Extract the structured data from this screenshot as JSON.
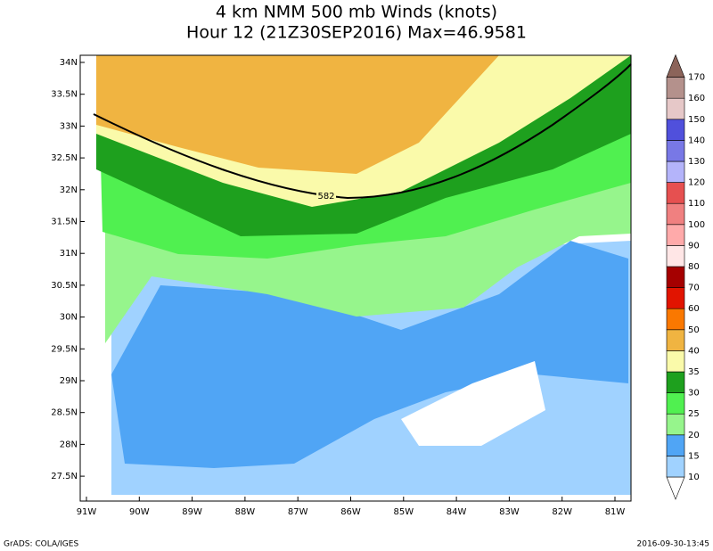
{
  "title": {
    "line1": "4 km NMM 500 mb Winds (knots)",
    "line2": "Hour 12 (21Z30SEP2016) Max=46.9581"
  },
  "lat_labels": [
    "34N",
    "33.5N",
    "33N",
    "32.5N",
    "32N",
    "31.5N",
    "31N",
    "30.5N",
    "30N",
    "29.5N",
    "29N",
    "28.5N",
    "28N",
    "27.5N"
  ],
  "lon_labels": [
    "91W",
    "90W",
    "89W",
    "88W",
    "87W",
    "86W",
    "85W",
    "84W",
    "83W",
    "82W",
    "81W"
  ],
  "contour_label": "582",
  "colorbar": {
    "labels": [
      "10",
      "15",
      "20",
      "25",
      "30",
      "35",
      "40",
      "50",
      "60",
      "70",
      "80",
      "90",
      "100",
      "110",
      "120",
      "130",
      "140",
      "150",
      "160",
      "170"
    ],
    "colors": [
      "#ffffff",
      "#a0d2ff",
      "#50a5f5",
      "#96f58c",
      "#50f050",
      "#1ea01e",
      "#fafaaa",
      "#f0b441",
      "#fa7800",
      "#e11400",
      "#a50000",
      "#ffe6e6",
      "#ffaaaa",
      "#f08080",
      "#e65050",
      "#b4b4fa",
      "#7878e6",
      "#5050dc",
      "#e6c8c8",
      "#b4918c",
      "#8c645a"
    ]
  },
  "footer": {
    "left": "GrADS: COLA/IGES",
    "right": "2016-09-30-13:45"
  }
}
